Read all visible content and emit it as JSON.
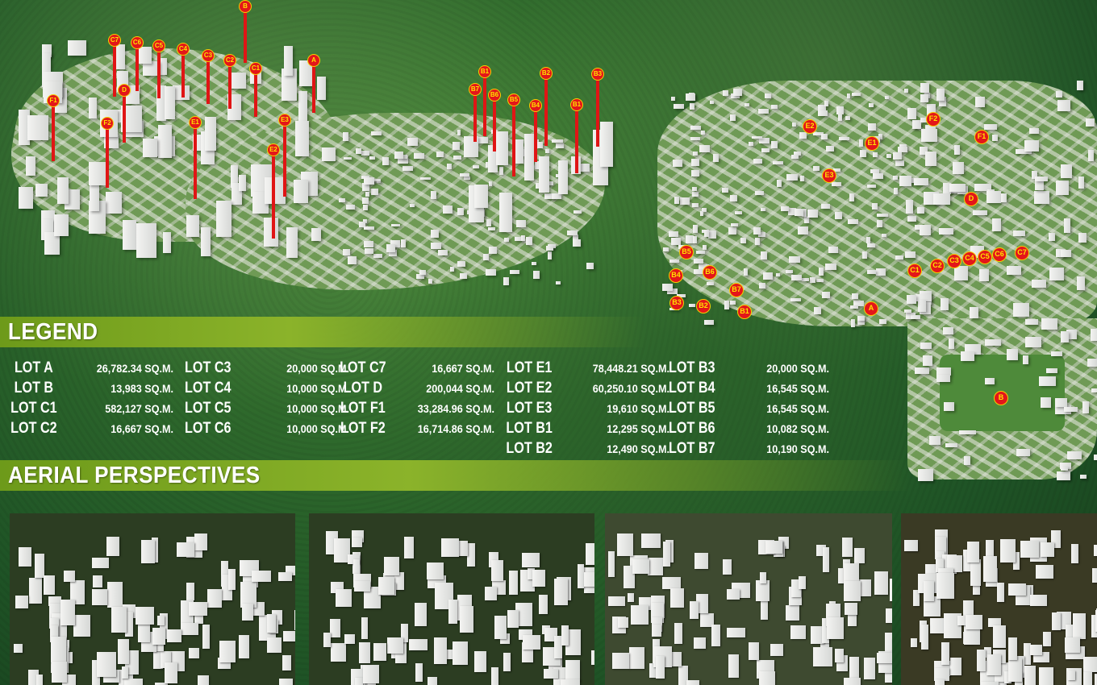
{
  "aerial_markers": [
    "B",
    "C7",
    "C6",
    "C5",
    "C4",
    "C3",
    "C2",
    "C1",
    "A",
    "D",
    "F1",
    "F2",
    "E1",
    "E3",
    "E2",
    "B1",
    "B2",
    "B3",
    "B7",
    "B6",
    "B5",
    "B4",
    "B1"
  ],
  "plan_markers": [
    "E2",
    "F2",
    "F1",
    "E1",
    "E3",
    "D",
    "B5",
    "B6",
    "B4",
    "C1",
    "C2",
    "C3",
    "C4",
    "C5",
    "C6",
    "C7",
    "B7",
    "B3",
    "B2",
    "B1",
    "A",
    "B"
  ],
  "legend": {
    "title": "LEGEND",
    "columns": [
      [
        {
          "lot": "LOT A",
          "area": "26,782.34 SQ.M."
        },
        {
          "lot": "LOT B",
          "area": "13,983 SQ.M."
        },
        {
          "lot": "LOT C1",
          "area": "582,127 SQ.M."
        },
        {
          "lot": "LOT C2",
          "area": "16,667 SQ.M."
        }
      ],
      [
        {
          "lot": "LOT C3",
          "area": "20,000 SQ.M."
        },
        {
          "lot": "LOT C4",
          "area": "10,000 SQ.M."
        },
        {
          "lot": "LOT C5",
          "area": "10,000 SQ.M."
        },
        {
          "lot": "LOT C6",
          "area": "10,000 SQ.M."
        }
      ],
      [
        {
          "lot": "LOT C7",
          "area": "16,667 SQ.M."
        },
        {
          "lot": "LOT D",
          "area": "200,044 SQ.M."
        },
        {
          "lot": "LOT F1",
          "area": "33,284.96 SQ.M."
        },
        {
          "lot": "LOT F2",
          "area": "16,714.86 SQ.M."
        }
      ],
      [
        {
          "lot": "LOT E1",
          "area": "78,448.21 SQ.M."
        },
        {
          "lot": "LOT E2",
          "area": "60,250.10 SQ.M."
        },
        {
          "lot": "LOT E3",
          "area": "19,610 SQ.M."
        },
        {
          "lot": "LOT B1",
          "area": "12,295 SQ.M."
        },
        {
          "lot": "LOT B2",
          "area": "12,490 SQ.M."
        }
      ],
      [
        {
          "lot": "LOT B3",
          "area": "20,000 SQ.M."
        },
        {
          "lot": "LOT B4",
          "area": "16,545 SQ.M."
        },
        {
          "lot": "LOT B5",
          "area": "16,545 SQ.M."
        },
        {
          "lot": "LOT B6",
          "area": "10,082 SQ.M."
        },
        {
          "lot": "LOT B7",
          "area": "10,190 SQ.M."
        }
      ]
    ]
  },
  "aerial_perspectives": {
    "title": "AERIAL PERSPECTIVES",
    "count": 4
  },
  "colors": {
    "marker": "#e3161a",
    "marker_text": "#ffe100",
    "band": "#8bb32a"
  }
}
